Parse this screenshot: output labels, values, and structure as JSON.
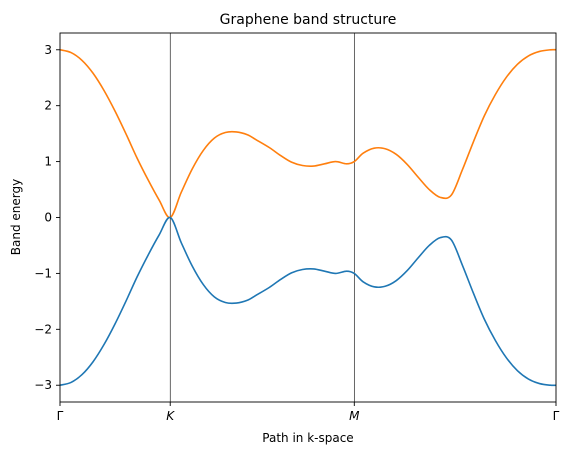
{
  "chart_data": {
    "type": "line",
    "title": "Graphene band structure",
    "xlabel": "Path in k-space",
    "ylabel": "Band energy",
    "ylim": [
      -3.3,
      3.3
    ],
    "yticks": [
      -3,
      -2,
      -1,
      0,
      1,
      2,
      3
    ],
    "ytick_labels": [
      "−3",
      "−2",
      "−1",
      "0",
      "1",
      "2",
      "3"
    ],
    "xlim": [
      0,
      4.5
    ],
    "xticks": [
      0,
      1,
      2.67,
      4.5
    ],
    "xtick_labels": [
      "Γ",
      "K",
      "M",
      "Γ"
    ],
    "vlines": [
      1,
      2.67
    ],
    "grid": false,
    "legend": "none",
    "series": [
      {
        "color": "#ff7f0e",
        "x": [
          0,
          0.1,
          0.2,
          0.3,
          0.4,
          0.5,
          0.6,
          0.7,
          0.8,
          0.9,
          1.0,
          1.1,
          1.2,
          1.3,
          1.4,
          1.5,
          1.6,
          1.7,
          1.78,
          1.9,
          2.0,
          2.1,
          2.2,
          2.3,
          2.4,
          2.5,
          2.6,
          2.67,
          2.75,
          2.85,
          2.95,
          3.05,
          3.15,
          3.25,
          3.35,
          3.45,
          3.55,
          3.65,
          3.75,
          3.85,
          3.95,
          4.05,
          4.15,
          4.25,
          4.35,
          4.45,
          4.5
        ],
        "y": [
          3.0,
          2.95,
          2.81,
          2.58,
          2.27,
          1.9,
          1.49,
          1.06,
          0.67,
          0.31,
          0.0,
          0.45,
          0.87,
          1.2,
          1.42,
          1.52,
          1.53,
          1.48,
          1.39,
          1.25,
          1.11,
          0.99,
          0.93,
          0.92,
          0.96,
          1.0,
          0.96,
          1.0,
          1.15,
          1.24,
          1.23,
          1.13,
          0.95,
          0.72,
          0.5,
          0.36,
          0.4,
          0.85,
          1.35,
          1.82,
          2.2,
          2.51,
          2.74,
          2.89,
          2.97,
          3.0,
          3.0
        ]
      },
      {
        "color": "#1f77b4",
        "x": [
          0,
          0.1,
          0.2,
          0.3,
          0.4,
          0.5,
          0.6,
          0.7,
          0.8,
          0.9,
          1.0,
          1.1,
          1.2,
          1.3,
          1.4,
          1.5,
          1.6,
          1.7,
          1.78,
          1.9,
          2.0,
          2.1,
          2.2,
          2.3,
          2.4,
          2.5,
          2.6,
          2.67,
          2.75,
          2.85,
          2.95,
          3.05,
          3.15,
          3.25,
          3.35,
          3.45,
          3.55,
          3.65,
          3.75,
          3.85,
          3.95,
          4.05,
          4.15,
          4.25,
          4.35,
          4.45,
          4.5
        ],
        "y": [
          -3.0,
          -2.95,
          -2.81,
          -2.58,
          -2.27,
          -1.9,
          -1.49,
          -1.06,
          -0.67,
          -0.31,
          0.0,
          -0.45,
          -0.87,
          -1.2,
          -1.42,
          -1.52,
          -1.53,
          -1.48,
          -1.39,
          -1.25,
          -1.11,
          -0.99,
          -0.93,
          -0.92,
          -0.96,
          -1.0,
          -0.96,
          -1.0,
          -1.15,
          -1.24,
          -1.23,
          -1.13,
          -0.95,
          -0.72,
          -0.5,
          -0.36,
          -0.4,
          -0.85,
          -1.35,
          -1.82,
          -2.2,
          -2.51,
          -2.74,
          -2.89,
          -2.97,
          -3.0,
          -3.0
        ]
      }
    ]
  }
}
